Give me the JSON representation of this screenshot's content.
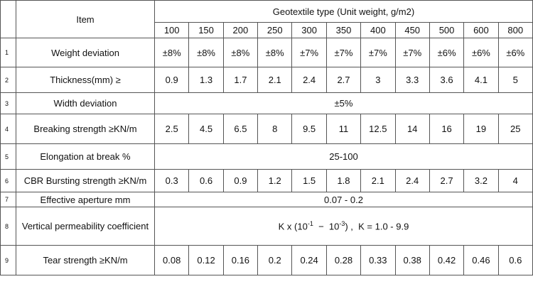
{
  "table": {
    "header": {
      "item": "Item",
      "group": "Geotextile type (Unit weight, g/m2)",
      "weights": [
        "100",
        "150",
        "200",
        "250",
        "300",
        "350",
        "400",
        "450",
        "500",
        "600",
        "800"
      ]
    },
    "rows": [
      {
        "no": "1",
        "item": "Weight deviation",
        "values": [
          "±8%",
          "±8%",
          "±8%",
          "±8%",
          "±7%",
          "±7%",
          "±7%",
          "±7%",
          "±6%",
          "±6%",
          "±6%"
        ]
      },
      {
        "no": "2",
        "item": "Thickness(mm) ≥",
        "values": [
          "0.9",
          "1.3",
          "1.7",
          "2.1",
          "2.4",
          "2.7",
          "3",
          "3.3",
          "3.6",
          "4.1",
          "5"
        ]
      },
      {
        "no": "3",
        "item": "Width deviation",
        "merged": "±5%"
      },
      {
        "no": "4",
        "item": "Breaking strength ≥KN/m",
        "values": [
          "2.5",
          "4.5",
          "6.5",
          "8",
          "9.5",
          "11",
          "12.5",
          "14",
          "16",
          "19",
          "25"
        ]
      },
      {
        "no": "5",
        "item": "Elongation at break %",
        "merged": "25-100"
      },
      {
        "no": "6",
        "item": "CBR Bursting strength ≥KN/m",
        "values": [
          "0.3",
          "0.6",
          "0.9",
          "1.2",
          "1.5",
          "1.8",
          "2.1",
          "2.4",
          "2.7",
          "3.2",
          "4"
        ]
      },
      {
        "no": "7",
        "item": "Effective aperture mm",
        "merged": "0.07 - 0.2"
      },
      {
        "no": "8",
        "item": "Vertical permeability coefficient",
        "merged_parts": [
          "K x (10",
          "-1",
          "  −  10",
          "-3",
          ") ,  K = 1.0 - 9.9"
        ]
      },
      {
        "no": "9",
        "item": "Tear strength ≥KN/m",
        "values": [
          "0.08",
          "0.12",
          "0.16",
          "0.2",
          "0.24",
          "0.28",
          "0.33",
          "0.38",
          "0.42",
          "0.46",
          "0.6"
        ]
      }
    ]
  }
}
